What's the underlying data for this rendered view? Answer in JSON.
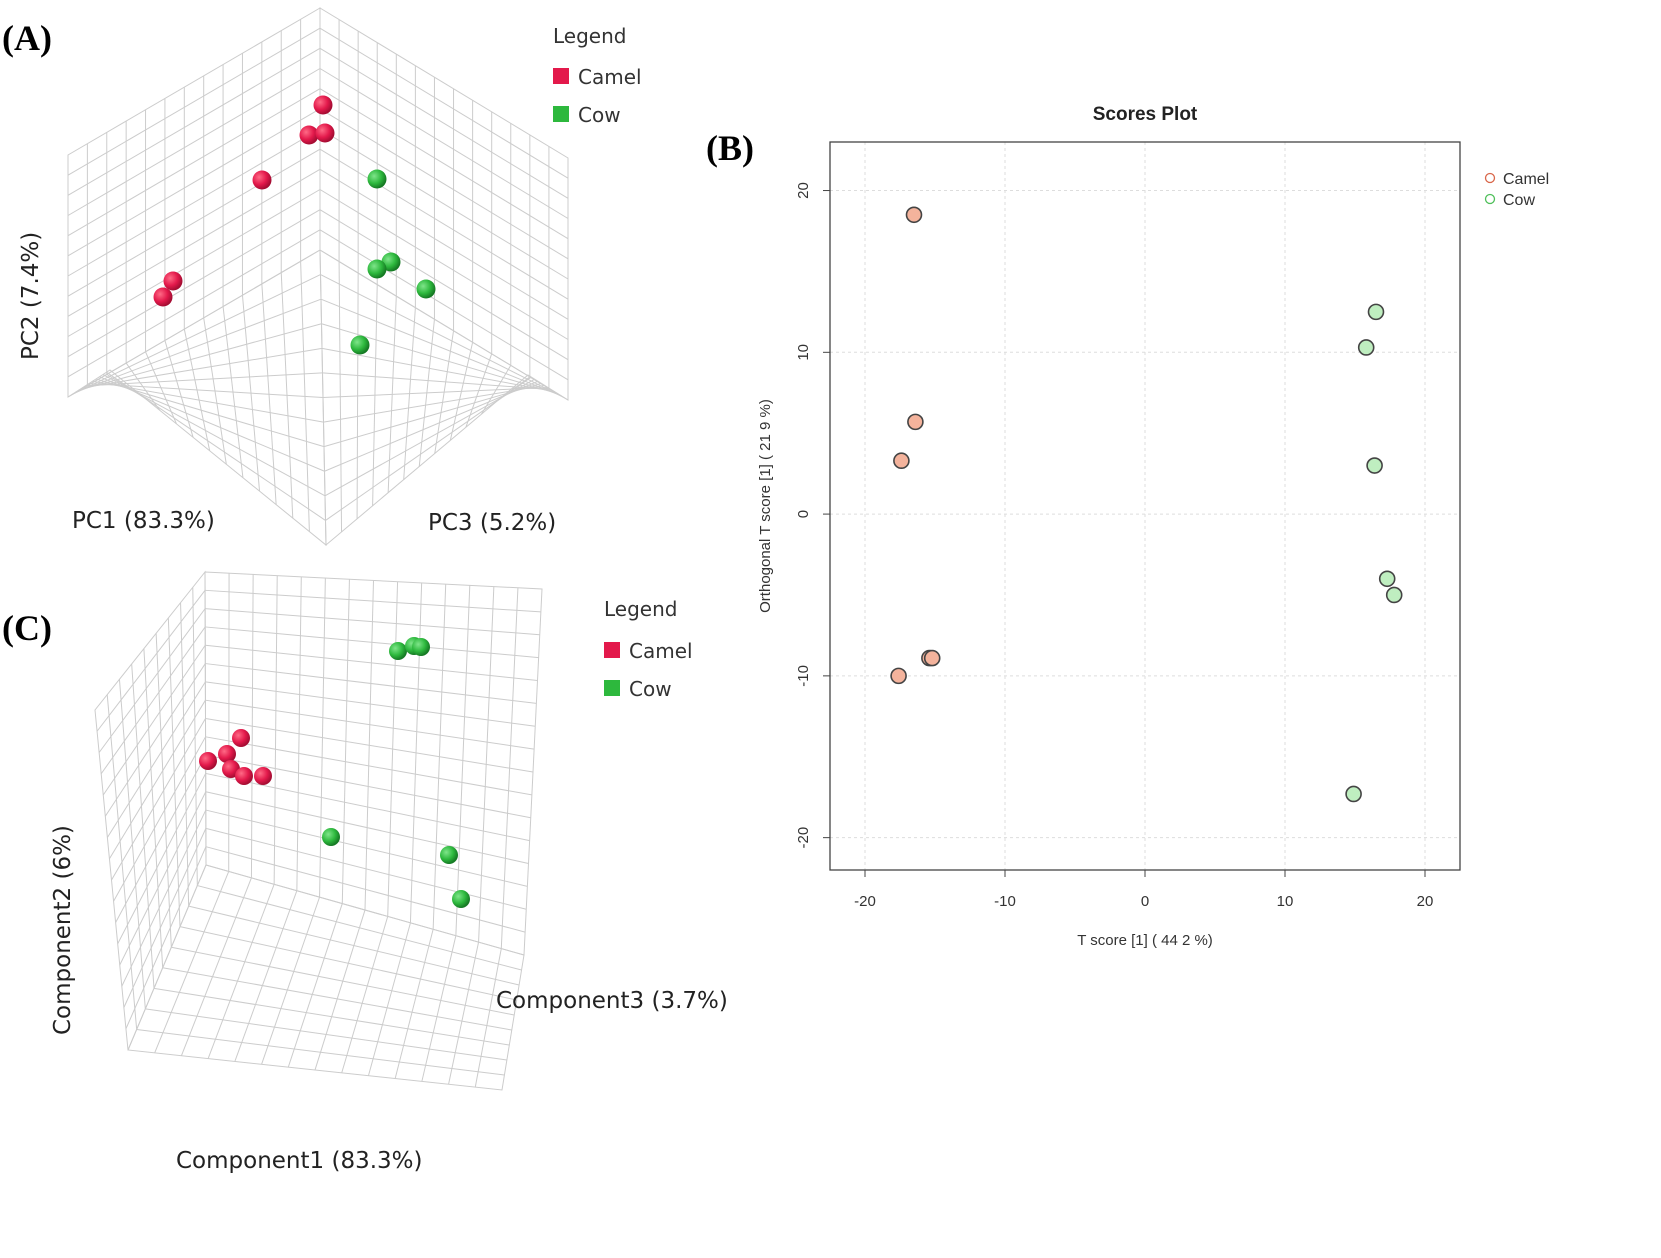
{
  "labels": {
    "a": "(A)",
    "b": "(B)",
    "c": "(C)"
  },
  "colors": {
    "camel3d": "#e3194b",
    "cow3d": "#2db83d",
    "camel2d_fill": "#f4b39c",
    "camel2d_stroke": "#c0553a",
    "cow2d_fill": "#bfeec0",
    "cow2d_stroke": "#3d9a49",
    "grid": "#cccccc"
  },
  "chart_data": [
    {
      "id": "A",
      "type": "scatter",
      "title": "",
      "axis_labels": {
        "x": "PC1 (83.3%)",
        "y": "PC2 (7.4%)",
        "z": "PC3 (5.2%)"
      },
      "legend": {
        "title": "Legend",
        "items": [
          {
            "name": "Camel",
            "color": "#e3194b"
          },
          {
            "name": "Cow",
            "color": "#2db83d"
          }
        ]
      },
      "series": [
        {
          "name": "Camel",
          "points": [
            [
              323,
              105
            ],
            [
              309,
              135
            ],
            [
              325,
              133
            ],
            [
              262,
              180
            ],
            [
              173,
              281
            ],
            [
              163,
              297
            ]
          ]
        },
        {
          "name": "Cow",
          "points": [
            [
              377,
              179
            ],
            [
              391,
              262
            ],
            [
              377,
              269
            ],
            [
              426,
              289
            ],
            [
              360,
              345
            ]
          ]
        }
      ]
    },
    {
      "id": "B",
      "type": "scatter",
      "title": "Scores Plot",
      "xlabel": "T score [1] ( 44 2 %)",
      "ylabel": "Orthogonal T score [1] ( 21 9 %)",
      "xlim": [
        -22.5,
        22.5
      ],
      "ylim": [
        -22,
        23
      ],
      "xticks": [
        -20,
        -10,
        0,
        10,
        20
      ],
      "yticks": [
        -20,
        -10,
        0,
        10,
        20
      ],
      "xtick_labels": [
        "-20",
        "-10",
        "0",
        "10",
        "20"
      ],
      "ytick_labels": [
        "-20",
        "-10",
        "0",
        "10",
        "20"
      ],
      "legend": {
        "items": [
          {
            "name": "Camel"
          },
          {
            "name": "Cow"
          }
        ]
      },
      "series": [
        {
          "name": "Camel",
          "x": [
            -16.5,
            -16.4,
            -17.4,
            -15.4,
            -15.2,
            -17.6
          ],
          "y": [
            18.5,
            5.7,
            3.3,
            -8.9,
            -8.9,
            -10.0
          ]
        },
        {
          "name": "Cow",
          "x": [
            16.5,
            15.8,
            16.4,
            17.3,
            17.8,
            14.9
          ],
          "y": [
            12.5,
            10.3,
            3.0,
            -4.0,
            -5.0,
            -17.3
          ]
        }
      ]
    },
    {
      "id": "C",
      "type": "scatter",
      "title": "",
      "axis_labels": {
        "x": "Component1 (83.3%)",
        "y": "Component2 (6%)",
        "z": "Component3 (3.7%)"
      },
      "legend": {
        "title": "Legend",
        "items": [
          {
            "name": "Camel",
            "color": "#e3194b"
          },
          {
            "name": "Cow",
            "color": "#2db83d"
          }
        ]
      },
      "series": [
        {
          "name": "Camel",
          "points": [
            [
              241,
              738
            ],
            [
              227,
              754
            ],
            [
              208,
              761
            ],
            [
              231,
              769
            ],
            [
              244,
              776
            ],
            [
              263,
              776
            ]
          ]
        },
        {
          "name": "Cow",
          "points": [
            [
              398,
              651
            ],
            [
              414,
              646
            ],
            [
              421,
              647
            ],
            [
              331,
              837
            ],
            [
              449,
              855
            ],
            [
              461,
              899
            ]
          ]
        }
      ]
    }
  ]
}
